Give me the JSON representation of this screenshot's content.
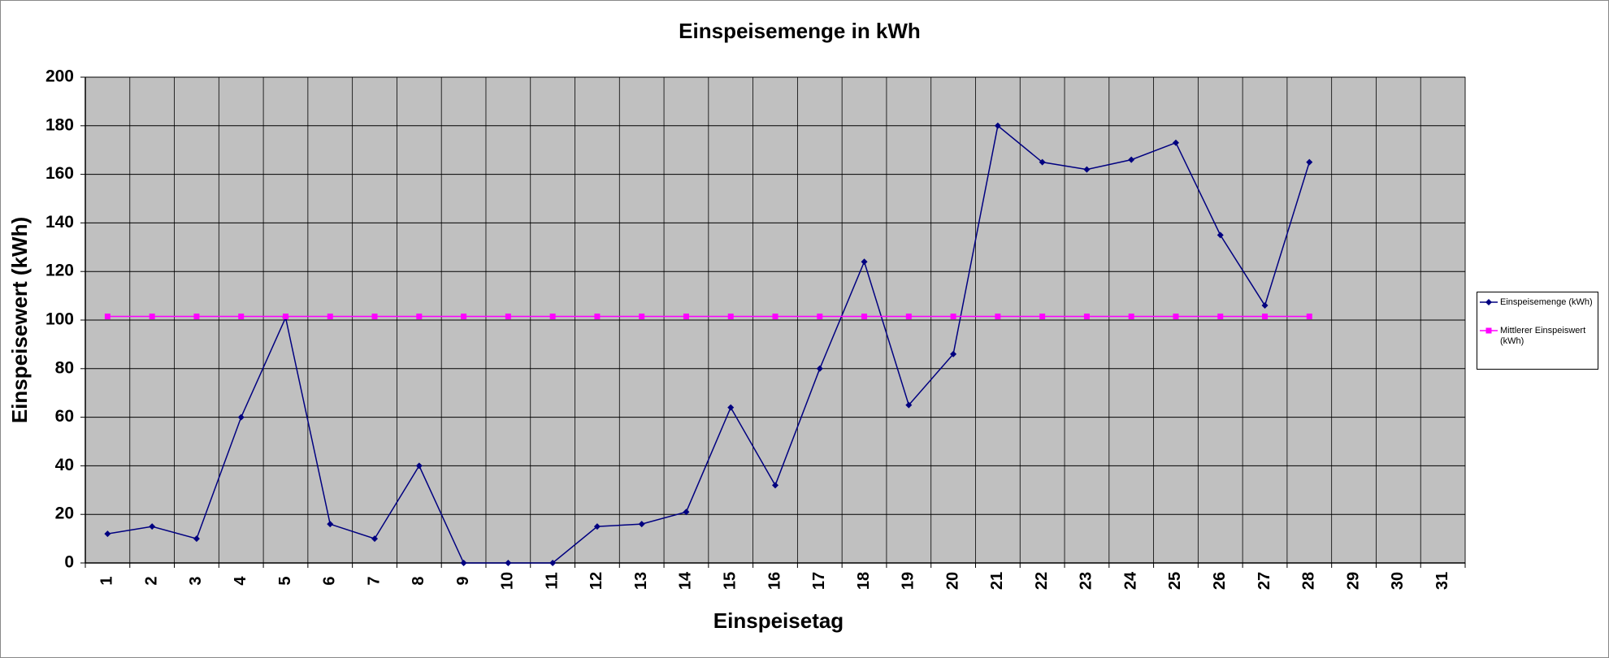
{
  "chart_data": {
    "type": "line",
    "title": "Einspeisemenge in kWh",
    "x_label": "Einspeisetag",
    "y_label": "Einspeisewert  (kWh)",
    "categories": [
      "1",
      "2",
      "3",
      "4",
      "5",
      "6",
      "7",
      "8",
      "9",
      "10",
      "11",
      "12",
      "13",
      "14",
      "15",
      "16",
      "17",
      "18",
      "19",
      "20",
      "21",
      "22",
      "23",
      "24",
      "25",
      "26",
      "27",
      "28",
      "29",
      "30",
      "31"
    ],
    "series": [
      {
        "name": "Einspeisemenge (kWh)",
        "color": "#000080",
        "marker": "diamond",
        "values": [
          12,
          15,
          10,
          60,
          101,
          16,
          10,
          40,
          0,
          0,
          0,
          15,
          16,
          21,
          64,
          32,
          80,
          124,
          65,
          86,
          180,
          165,
          162,
          166,
          173,
          135,
          106,
          165,
          null,
          null,
          null
        ]
      },
      {
        "name": "Mittlerer Einspeiswert (kWh)",
        "color": "#ff00ff",
        "marker": "square",
        "values": [
          101.5,
          101.5,
          101.5,
          101.5,
          101.5,
          101.5,
          101.5,
          101.5,
          101.5,
          101.5,
          101.5,
          101.5,
          101.5,
          101.5,
          101.5,
          101.5,
          101.5,
          101.5,
          101.5,
          101.5,
          101.5,
          101.5,
          101.5,
          101.5,
          101.5,
          101.5,
          101.5,
          101.5,
          null,
          null,
          null
        ]
      }
    ],
    "ylim": [
      0,
      200
    ],
    "yticks": [
      0,
      20,
      40,
      60,
      80,
      100,
      120,
      140,
      160,
      180,
      200
    ],
    "grid": true,
    "legend": "right",
    "plot_background": "#c0c0c0"
  }
}
